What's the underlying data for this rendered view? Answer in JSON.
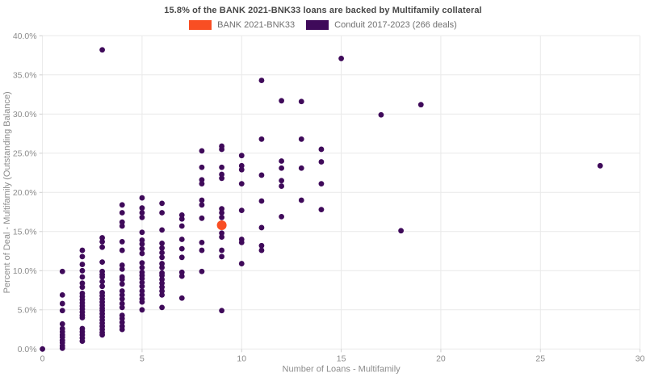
{
  "chart_data": {
    "type": "scatter",
    "title": "15.8% of the BANK 2021-BNK33 loans are backed by Multifamily collateral",
    "xlabel": "Number of Loans - Multifamily",
    "ylabel": "Percent of Deal - Multifamily (Outstanding Balance)",
    "xlim": [
      0,
      30
    ],
    "ylim": [
      0,
      40
    ],
    "x_ticks": [
      0,
      5,
      10,
      15,
      20,
      25,
      30
    ],
    "x_tick_labels": [
      "0",
      "5",
      "10",
      "15",
      "20",
      "25",
      "30"
    ],
    "y_ticks": [
      0,
      5,
      10,
      15,
      20,
      25,
      30,
      35,
      40
    ],
    "y_tick_labels": [
      "0.0%",
      "5.0%",
      "10.0%",
      "15.0%",
      "20.0%",
      "25.0%",
      "30.0%",
      "35.0%",
      "40.0%"
    ],
    "grid": true,
    "legend_position": "top-center",
    "colors": {
      "bank": "#F94E23",
      "conduit": "#3F0A5A",
      "grid": "#E9E9E9",
      "tick_mark": "#CFCFCF",
      "axis_text": "#8C8C8C",
      "title_text": "#474747",
      "legend_text": "#707070",
      "background": "#FFFFFF"
    },
    "series": [
      {
        "name": "Conduit 2017-2023 (266 deals)",
        "color": "#3F0A5A",
        "marker_radius": 3.4,
        "points": [
          [
            0,
            0.0
          ],
          [
            1,
            9.9
          ],
          [
            1,
            6.9
          ],
          [
            1,
            5.8
          ],
          [
            1,
            4.9
          ],
          [
            1,
            3.2
          ],
          [
            1,
            2.6
          ],
          [
            1,
            2.2
          ],
          [
            1,
            1.8
          ],
          [
            1,
            1.5
          ],
          [
            1,
            1.1
          ],
          [
            1,
            0.8
          ],
          [
            1,
            0.4
          ],
          [
            1,
            0.1
          ],
          [
            2,
            12.6
          ],
          [
            2,
            11.8
          ],
          [
            2,
            10.8
          ],
          [
            2,
            10.0
          ],
          [
            2,
            9.2
          ],
          [
            2,
            8.4
          ],
          [
            2,
            7.9
          ],
          [
            2,
            7.1
          ],
          [
            2,
            6.7
          ],
          [
            2,
            6.3
          ],
          [
            2,
            5.9
          ],
          [
            2,
            5.5
          ],
          [
            2,
            5.1
          ],
          [
            2,
            4.7
          ],
          [
            2,
            4.3
          ],
          [
            2,
            4.0
          ],
          [
            2,
            2.6
          ],
          [
            2,
            2.2
          ],
          [
            2,
            1.8
          ],
          [
            2,
            1.4
          ],
          [
            2,
            1.0
          ],
          [
            3,
            38.2
          ],
          [
            3,
            14.2
          ],
          [
            3,
            13.7
          ],
          [
            3,
            13.0
          ],
          [
            3,
            11.1
          ],
          [
            3,
            9.9
          ],
          [
            3,
            9.5
          ],
          [
            3,
            9.2
          ],
          [
            3,
            8.6
          ],
          [
            3,
            8.0
          ],
          [
            3,
            7.2
          ],
          [
            3,
            6.8
          ],
          [
            3,
            6.4
          ],
          [
            3,
            6.0
          ],
          [
            3,
            5.6
          ],
          [
            3,
            5.2
          ],
          [
            3,
            4.9
          ],
          [
            3,
            4.5
          ],
          [
            3,
            4.1
          ],
          [
            3,
            3.7
          ],
          [
            3,
            3.3
          ],
          [
            3,
            2.9
          ],
          [
            3,
            2.5
          ],
          [
            3,
            2.1
          ],
          [
            3,
            1.8
          ],
          [
            4,
            18.4
          ],
          [
            4,
            17.4
          ],
          [
            4,
            16.2
          ],
          [
            4,
            15.7
          ],
          [
            4,
            13.7
          ],
          [
            4,
            12.6
          ],
          [
            4,
            10.7
          ],
          [
            4,
            10.2
          ],
          [
            4,
            9.2
          ],
          [
            4,
            8.9
          ],
          [
            4,
            8.3
          ],
          [
            4,
            7.4
          ],
          [
            4,
            6.9
          ],
          [
            4,
            6.4
          ],
          [
            4,
            5.8
          ],
          [
            4,
            5.3
          ],
          [
            4,
            4.3
          ],
          [
            4,
            3.9
          ],
          [
            4,
            3.4
          ],
          [
            4,
            2.9
          ],
          [
            4,
            2.5
          ],
          [
            5,
            19.3
          ],
          [
            5,
            18.0
          ],
          [
            5,
            17.4
          ],
          [
            5,
            16.8
          ],
          [
            5,
            14.9
          ],
          [
            5,
            13.9
          ],
          [
            5,
            13.4
          ],
          [
            5,
            12.8
          ],
          [
            5,
            12.2
          ],
          [
            5,
            11.0
          ],
          [
            5,
            10.4
          ],
          [
            5,
            9.8
          ],
          [
            5,
            9.4
          ],
          [
            5,
            9.0
          ],
          [
            5,
            8.5
          ],
          [
            5,
            8.0
          ],
          [
            5,
            7.4
          ],
          [
            5,
            6.9
          ],
          [
            5,
            6.4
          ],
          [
            5,
            6.0
          ],
          [
            5,
            5.0
          ],
          [
            6,
            18.6
          ],
          [
            6,
            17.4
          ],
          [
            6,
            15.2
          ],
          [
            6,
            13.5
          ],
          [
            6,
            12.9
          ],
          [
            6,
            12.3
          ],
          [
            6,
            11.7
          ],
          [
            6,
            10.9
          ],
          [
            6,
            10.4
          ],
          [
            6,
            9.7
          ],
          [
            6,
            9.4
          ],
          [
            6,
            8.9
          ],
          [
            6,
            8.4
          ],
          [
            6,
            7.9
          ],
          [
            6,
            7.4
          ],
          [
            6,
            6.9
          ],
          [
            6,
            5.3
          ],
          [
            7,
            17.1
          ],
          [
            7,
            16.6
          ],
          [
            7,
            15.7
          ],
          [
            7,
            14.0
          ],
          [
            7,
            12.8
          ],
          [
            7,
            11.7
          ],
          [
            7,
            9.8
          ],
          [
            7,
            9.3
          ],
          [
            7,
            6.5
          ],
          [
            8,
            25.3
          ],
          [
            8,
            23.2
          ],
          [
            8,
            21.6
          ],
          [
            8,
            21.1
          ],
          [
            8,
            19.0
          ],
          [
            8,
            18.4
          ],
          [
            8,
            16.7
          ],
          [
            8,
            13.6
          ],
          [
            8,
            12.6
          ],
          [
            8,
            9.9
          ],
          [
            9,
            25.9
          ],
          [
            9,
            25.5
          ],
          [
            9,
            23.2
          ],
          [
            9,
            22.3
          ],
          [
            9,
            21.8
          ],
          [
            9,
            17.9
          ],
          [
            9,
            17.4
          ],
          [
            9,
            16.8
          ],
          [
            9,
            14.8
          ],
          [
            9,
            14.3
          ],
          [
            9,
            12.6
          ],
          [
            9,
            11.8
          ],
          [
            9,
            4.9
          ],
          [
            10,
            24.7
          ],
          [
            10,
            23.4
          ],
          [
            10,
            22.9
          ],
          [
            10,
            21.1
          ],
          [
            10,
            17.7
          ],
          [
            10,
            14.0
          ],
          [
            10,
            13.6
          ],
          [
            10,
            10.9
          ],
          [
            11,
            34.3
          ],
          [
            11,
            26.8
          ],
          [
            11,
            22.2
          ],
          [
            11,
            18.9
          ],
          [
            11,
            15.5
          ],
          [
            11,
            13.2
          ],
          [
            11,
            12.6
          ],
          [
            12,
            31.7
          ],
          [
            12,
            24.0
          ],
          [
            12,
            23.1
          ],
          [
            12,
            21.5
          ],
          [
            12,
            20.8
          ],
          [
            12,
            16.9
          ],
          [
            13,
            31.6
          ],
          [
            13,
            26.8
          ],
          [
            13,
            23.1
          ],
          [
            13,
            19.0
          ],
          [
            14,
            25.5
          ],
          [
            14,
            23.9
          ],
          [
            14,
            21.1
          ],
          [
            14,
            17.8
          ],
          [
            15,
            37.1
          ],
          [
            17,
            29.9
          ],
          [
            18,
            15.1
          ],
          [
            19,
            31.2
          ],
          [
            28,
            23.4
          ]
        ]
      },
      {
        "name": "BANK 2021-BNK33",
        "color": "#F94E23",
        "marker_radius": 6,
        "points": [
          [
            9,
            15.8
          ]
        ]
      }
    ]
  }
}
